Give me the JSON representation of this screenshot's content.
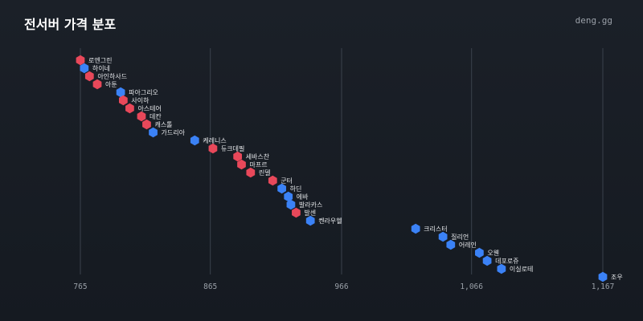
{
  "header": {
    "title": "전서버 가격 분포",
    "site": "deng.gg"
  },
  "colors": {
    "red": "#e8485a",
    "blue": "#3b82f6"
  },
  "chart_data": {
    "type": "scatter",
    "title": "전서버 가격 분포",
    "xlim": [
      765,
      1167
    ],
    "x_ticks": [
      "765",
      "865",
      "966",
      "1,066",
      "1,167"
    ],
    "x_tick_values": [
      765,
      865,
      966,
      1066,
      1167
    ],
    "grid": true,
    "points": [
      {
        "name": "로엔그린",
        "x": 765,
        "color": "red"
      },
      {
        "name": "하이네",
        "x": 768,
        "color": "blue"
      },
      {
        "name": "아인하사드",
        "x": 772,
        "color": "red"
      },
      {
        "name": "아툰",
        "x": 778,
        "color": "red"
      },
      {
        "name": "파아그리오",
        "x": 796,
        "color": "blue"
      },
      {
        "name": "사이하",
        "x": 798,
        "color": "red"
      },
      {
        "name": "아스테어",
        "x": 803,
        "color": "red"
      },
      {
        "name": "데칸",
        "x": 812,
        "color": "red"
      },
      {
        "name": "캐스톨",
        "x": 816,
        "color": "red"
      },
      {
        "name": "가드리아",
        "x": 821,
        "color": "blue"
      },
      {
        "name": "케레니스",
        "x": 853,
        "color": "blue"
      },
      {
        "name": "듀크데필",
        "x": 867,
        "color": "red"
      },
      {
        "name": "세바스찬",
        "x": 886,
        "color": "red"
      },
      {
        "name": "마프르",
        "x": 889,
        "color": "red"
      },
      {
        "name": "린델",
        "x": 896,
        "color": "red"
      },
      {
        "name": "군터",
        "x": 913,
        "color": "red"
      },
      {
        "name": "하딘",
        "x": 920,
        "color": "blue"
      },
      {
        "name": "에바",
        "x": 925,
        "color": "blue"
      },
      {
        "name": "발라카스",
        "x": 927,
        "color": "blue"
      },
      {
        "name": "발센",
        "x": 931,
        "color": "red"
      },
      {
        "name": "켄라우헬",
        "x": 942,
        "color": "blue"
      },
      {
        "name": "크리스터",
        "x": 1023,
        "color": "blue"
      },
      {
        "name": "질리언",
        "x": 1044,
        "color": "blue"
      },
      {
        "name": "어레인",
        "x": 1050,
        "color": "blue"
      },
      {
        "name": "오웬",
        "x": 1072,
        "color": "blue"
      },
      {
        "name": "데포로쥬",
        "x": 1078,
        "color": "blue"
      },
      {
        "name": "이실로테",
        "x": 1089,
        "color": "blue"
      },
      {
        "name": "조우",
        "x": 1167,
        "color": "blue"
      }
    ]
  }
}
